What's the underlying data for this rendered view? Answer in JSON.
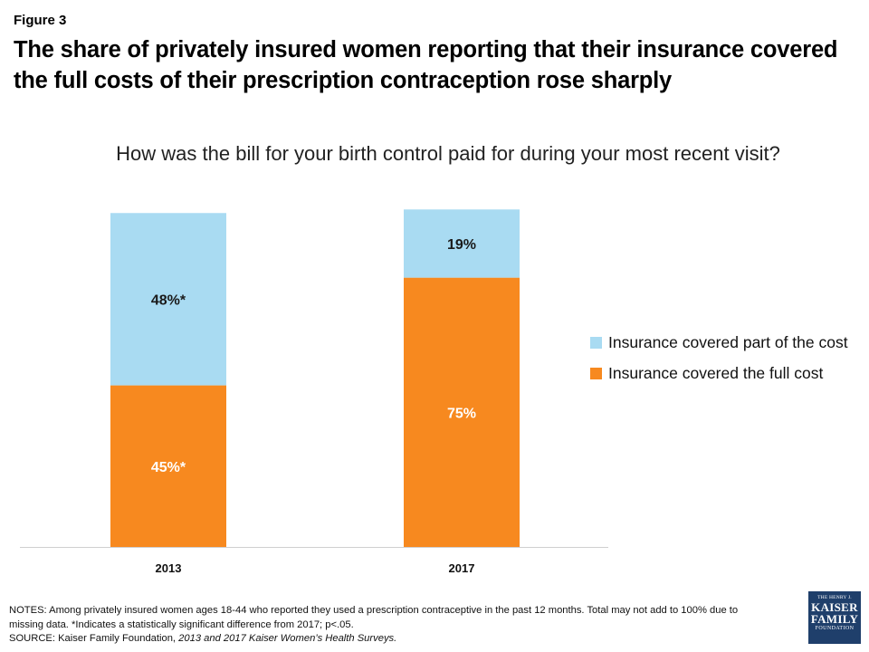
{
  "figure_label": "Figure 3",
  "title": "The share of privately insured women reporting that their insurance covered the full costs of their prescription contraception rose sharply",
  "notes": {
    "notes_line": "NOTES:  Among privately insured women ages 18-44 who reported they used a prescription contraceptive in the past 12 months. Total may not add to 100% due to missing data. *Indicates a statistically significant difference from 2017; p<.05.",
    "source_prefix": "SOURCE:  Kaiser Family Foundation, ",
    "source_italic": "2013 and 2017 Kaiser Women’s Health Surveys."
  },
  "logo": {
    "line1": "THE HENRY J.",
    "line2": "KAISER",
    "line3": "FAMILY",
    "line4": "FOUNDATION"
  },
  "chart_data": {
    "type": "bar",
    "stacked": true,
    "title": "How was the bill for your birth control paid for during your most recent visit?",
    "categories": [
      "2013",
      "2017"
    ],
    "series": [
      {
        "name": "Insurance covered the full cost",
        "values": [
          45,
          75
        ],
        "labels": [
          "45%*",
          "75%"
        ],
        "color": "#f7891f"
      },
      {
        "name": "Insurance covered part of the cost",
        "values": [
          48,
          19
        ],
        "labels": [
          "48%*",
          "19%"
        ],
        "color": "#a9dbf2"
      }
    ],
    "ylim": [
      0,
      100
    ],
    "legend_position": "right",
    "grid": false
  }
}
